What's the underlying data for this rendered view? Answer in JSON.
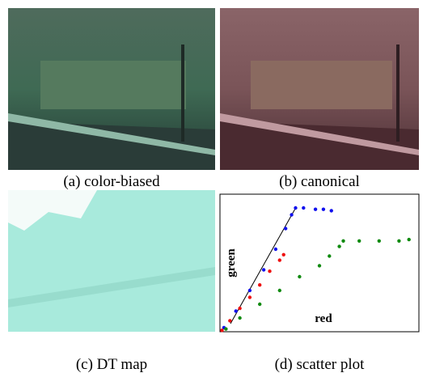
{
  "captions": [
    "(a) color-biased",
    "(b) canonical",
    "(c) DT map",
    "(d) scatter plot"
  ],
  "chart_data": {
    "type": "scatter",
    "x_label": "red",
    "y_label": "green",
    "xlim": [
      0,
      1
    ],
    "ylim": [
      0,
      1
    ],
    "series": [
      {
        "color": "#1010ee",
        "x": [
          0.02,
          0.08,
          0.15,
          0.22,
          0.28,
          0.33,
          0.36,
          0.38,
          0.42,
          0.48,
          0.52,
          0.56
        ],
        "values": [
          0.03,
          0.15,
          0.3,
          0.45,
          0.6,
          0.75,
          0.85,
          0.9,
          0.9,
          0.89,
          0.89,
          0.88
        ]
      },
      {
        "color": "#ee1010",
        "x": [
          0.01,
          0.05,
          0.1,
          0.15,
          0.2,
          0.25,
          0.3,
          0.32
        ],
        "values": [
          0.01,
          0.08,
          0.17,
          0.25,
          0.34,
          0.44,
          0.52,
          0.56
        ]
      },
      {
        "color": "#108a10",
        "x": [
          0.03,
          0.1,
          0.2,
          0.3,
          0.4,
          0.5,
          0.55,
          0.6,
          0.62,
          0.7,
          0.8,
          0.9,
          0.95
        ],
        "values": [
          0.02,
          0.1,
          0.2,
          0.3,
          0.4,
          0.48,
          0.55,
          0.62,
          0.66,
          0.66,
          0.66,
          0.66,
          0.67
        ]
      }
    ]
  }
}
